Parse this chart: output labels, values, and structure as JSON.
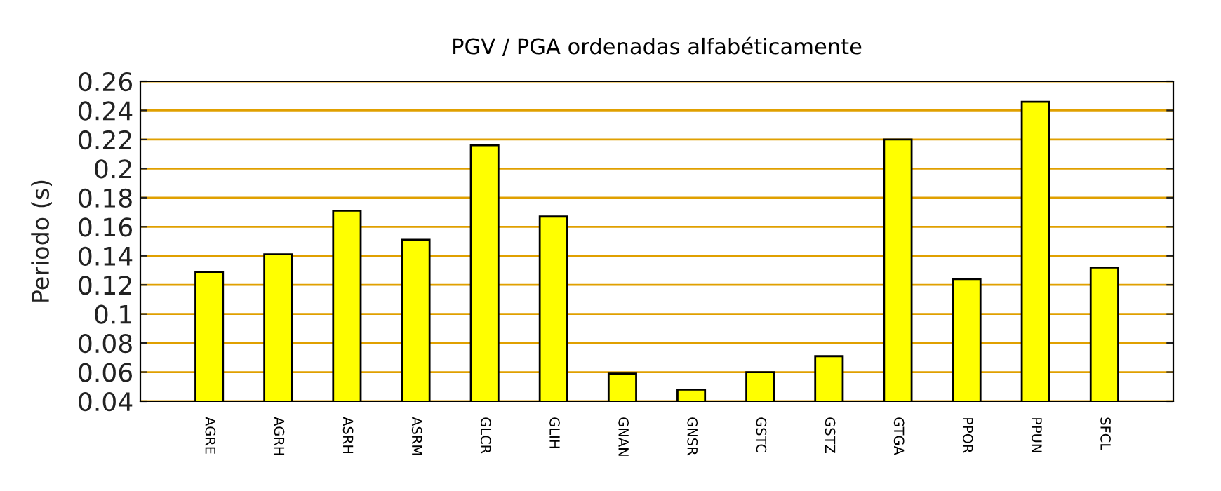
{
  "chart_data": {
    "type": "bar",
    "title": "PGV / PGA ordenadas alfabéticamente",
    "ylabel": "Periodo (s)",
    "categories": [
      "AGRE",
      "AGRH",
      "ASRH",
      "ASRM",
      "GLCR",
      "GLIH",
      "GNAN",
      "GNSR",
      "GSTC",
      "GSTZ",
      "GTGA",
      "PPOR",
      "PPUN",
      "SFCL"
    ],
    "values": [
      0.129,
      0.141,
      0.171,
      0.151,
      0.216,
      0.167,
      0.059,
      0.048,
      0.06,
      0.071,
      0.22,
      0.124,
      0.246,
      0.132
    ],
    "color": "#ffff00",
    "ylim": [
      0.04,
      0.26
    ],
    "yticks": [
      0.04,
      0.06,
      0.08,
      0.1,
      0.12,
      0.14,
      0.16,
      0.18,
      0.2,
      0.22,
      0.24,
      0.26
    ],
    "grid": "y"
  }
}
